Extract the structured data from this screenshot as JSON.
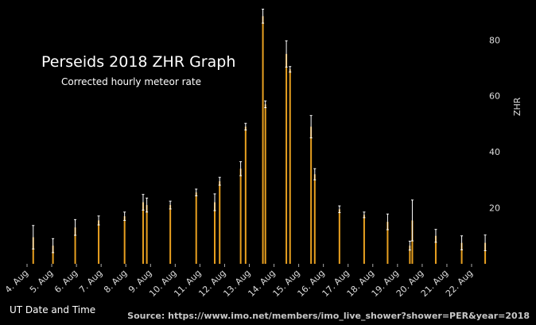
{
  "chart_data": {
    "type": "bar",
    "title": "Perseids 2018 ZHR Graph",
    "subtitle": "Corrected hourly meteor rate",
    "xlabel": "UT Date and Time",
    "ylabel": "ZHR",
    "ylim": [
      0,
      92
    ],
    "yticks": [
      20,
      40,
      60,
      80
    ],
    "grid": false,
    "source": "Source: https://www.imo.net/members/imo_live_shower?shower=PER&year=2018",
    "bar_color": "#e8a020",
    "error_color": "#ffffff",
    "categories": [
      "4. Aug",
      "5. Aug",
      "6. Aug",
      "7. Aug",
      "8. Aug",
      "9. Aug",
      "10. Aug",
      "11. Aug",
      "12. Aug",
      "13. Aug",
      "14. Aug",
      "15. Aug",
      "16. Aug",
      "17. Aug",
      "18. Aug",
      "19. Aug",
      "20. Aug",
      "21. Aug",
      "22. Aug"
    ],
    "points": [
      {
        "x": 4.25,
        "y": 9.5,
        "err": 4.2
      },
      {
        "x": 5.05,
        "y": 6.5,
        "err": 2.5
      },
      {
        "x": 5.95,
        "y": 13.0,
        "err": 2.8
      },
      {
        "x": 6.9,
        "y": 15.5,
        "err": 1.6
      },
      {
        "x": 7.95,
        "y": 17.0,
        "err": 1.5
      },
      {
        "x": 8.7,
        "y": 22.0,
        "err": 2.8
      },
      {
        "x": 8.85,
        "y": 21.0,
        "err": 2.5
      },
      {
        "x": 9.8,
        "y": 21.0,
        "err": 1.4
      },
      {
        "x": 10.85,
        "y": 25.5,
        "err": 1.2
      },
      {
        "x": 11.6,
        "y": 22.0,
        "err": 3.0
      },
      {
        "x": 11.8,
        "y": 29.5,
        "err": 1.4
      },
      {
        "x": 12.65,
        "y": 34.0,
        "err": 2.5
      },
      {
        "x": 12.85,
        "y": 49.0,
        "err": 1.2
      },
      {
        "x": 13.55,
        "y": 88.5,
        "err": 2.5
      },
      {
        "x": 13.65,
        "y": 57.0,
        "err": 1.2
      },
      {
        "x": 14.5,
        "y": 75.0,
        "err": 4.7
      },
      {
        "x": 14.65,
        "y": 69.5,
        "err": 1.0
      },
      {
        "x": 15.5,
        "y": 49.0,
        "err": 4.0
      },
      {
        "x": 15.65,
        "y": 32.0,
        "err": 2.0
      },
      {
        "x": 16.65,
        "y": 19.5,
        "err": 1.2
      },
      {
        "x": 17.65,
        "y": 17.5,
        "err": 1.0
      },
      {
        "x": 18.6,
        "y": 15.0,
        "err": 2.8
      },
      {
        "x": 19.5,
        "y": 6.5,
        "err": 1.6
      },
      {
        "x": 19.6,
        "y": 15.5,
        "err": 7.3
      },
      {
        "x": 20.55,
        "y": 10.0,
        "err": 2.3
      },
      {
        "x": 21.6,
        "y": 7.5,
        "err": 2.5
      },
      {
        "x": 22.55,
        "y": 7.5,
        "err": 2.8
      }
    ]
  }
}
